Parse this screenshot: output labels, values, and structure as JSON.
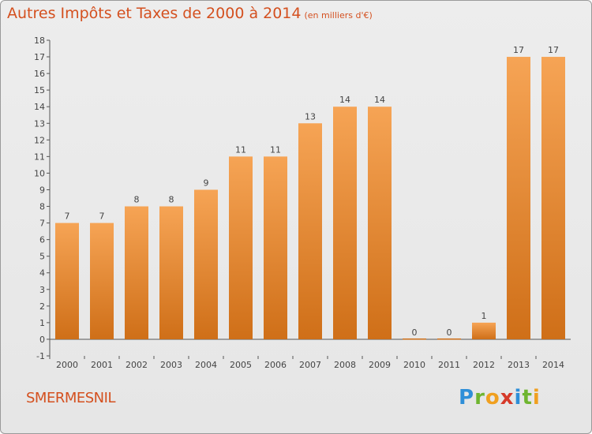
{
  "title": {
    "main": "Autres Impôts et Taxes de 2000 à 2014",
    "unit": "(en milliers d'€)"
  },
  "commune": "SMERMESNIL",
  "logo": {
    "text": "Proxiti",
    "letters": [
      "P",
      "r",
      "o",
      "x",
      "i",
      "t",
      "i"
    ]
  },
  "colors": {
    "title": "#d4501f",
    "bar_light": "#f6a455",
    "bar_dark": "#cf6f18",
    "axis": "#555555"
  },
  "chart_data": {
    "type": "bar",
    "title": "Autres Impôts et Taxes de 2000 à 2014",
    "subtitle": "(en milliers d'€)",
    "categories": [
      "2000",
      "2001",
      "2002",
      "2003",
      "2004",
      "2005",
      "2006",
      "2007",
      "2008",
      "2009",
      "2010",
      "2011",
      "2012",
      "2013",
      "2014"
    ],
    "values": [
      7,
      7,
      8,
      8,
      9,
      11,
      11,
      13,
      14,
      14,
      0,
      0,
      1,
      17,
      17
    ],
    "value_labels": [
      "7",
      "7",
      "8",
      "8",
      "9",
      "11",
      "11",
      "13",
      "14",
      "14",
      "0",
      "0",
      "1",
      "17",
      "17"
    ],
    "yticks": [
      "-1",
      "0",
      "1",
      "2",
      "3",
      "4",
      "5",
      "6",
      "7",
      "8",
      "9",
      "10",
      "11",
      "12",
      "13",
      "14",
      "15",
      "16",
      "17",
      "18"
    ],
    "ytick_values": [
      -1,
      0,
      1,
      2,
      3,
      4,
      5,
      6,
      7,
      8,
      9,
      10,
      11,
      12,
      13,
      14,
      15,
      16,
      17,
      18
    ],
    "ylim": [
      -1,
      18
    ],
    "grid": false,
    "legend": "none"
  }
}
